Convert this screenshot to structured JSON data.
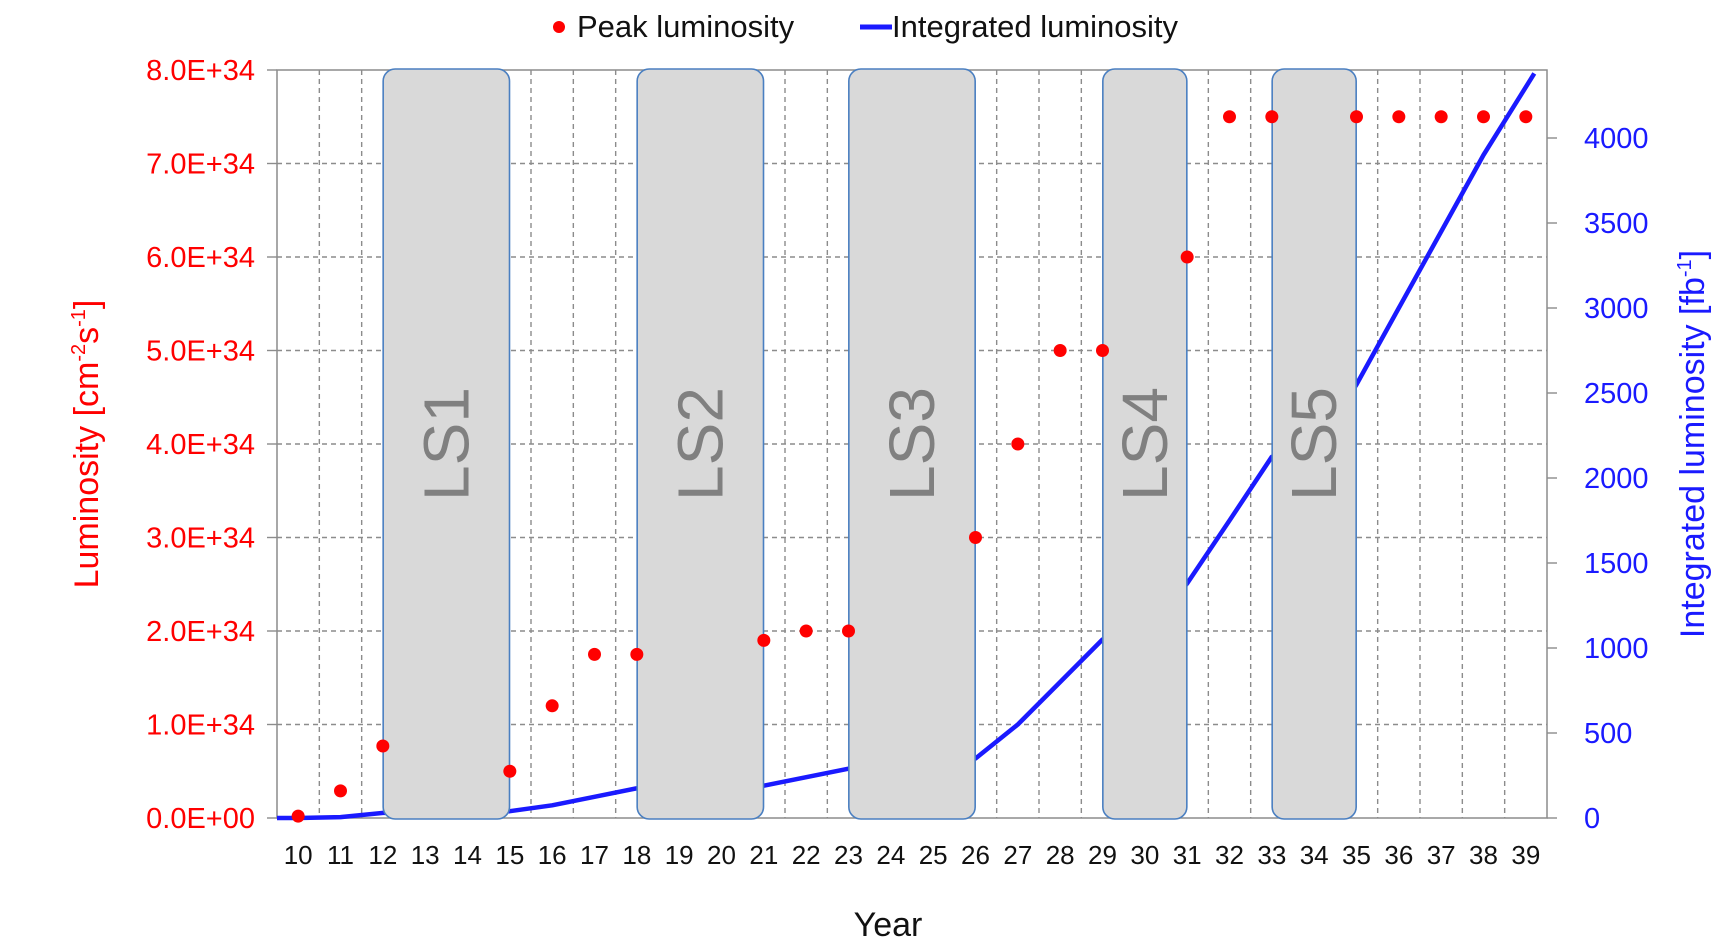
{
  "chart_data": {
    "type": "line",
    "xlabel": "Year",
    "ylabel_left": "Luminosity [cm",
    "ylabel_left_sup1": "-2",
    "ylabel_left_mid": "s",
    "ylabel_left_sup2": "-1",
    "ylabel_left_end": "]",
    "ylabel_right": "Integrated luminosity [fb",
    "ylabel_right_sup": "-1",
    "ylabel_right_end": "]",
    "x_categories": [
      "10",
      "11",
      "12",
      "13",
      "14",
      "15",
      "16",
      "17",
      "18",
      "19",
      "20",
      "21",
      "22",
      "23",
      "24",
      "25",
      "26",
      "27",
      "28",
      "29",
      "30",
      "31",
      "32",
      "33",
      "34",
      "35",
      "36",
      "37",
      "38",
      "39"
    ],
    "y_left_ticks": [
      "0.0E+00",
      "1.0E+34",
      "2.0E+34",
      "3.0E+34",
      "4.0E+34",
      "5.0E+34",
      "6.0E+34",
      "7.0E+34",
      "8.0E+34"
    ],
    "y_left_range": [
      0,
      8e+34
    ],
    "y_right_ticks": [
      "0",
      "500",
      "1000",
      "1500",
      "2000",
      "2500",
      "3000",
      "3500",
      "4000"
    ],
    "y_right_range": [
      0,
      4400
    ],
    "grid": true,
    "legend_position": "top",
    "series": [
      {
        "name": "Peak luminosity",
        "kind": "scatter",
        "axis": "left",
        "color": "#ff0000",
        "points": [
          {
            "x": 10,
            "y": 2e+32
          },
          {
            "x": 11,
            "y": 2.9e+33
          },
          {
            "x": 12,
            "y": 7.7e+33
          },
          {
            "x": 15,
            "y": 5e+33
          },
          {
            "x": 16,
            "y": 1.2e+34
          },
          {
            "x": 17,
            "y": 1.75e+34
          },
          {
            "x": 18,
            "y": 1.75e+34
          },
          {
            "x": 21,
            "y": 1.9e+34
          },
          {
            "x": 22,
            "y": 2e+34
          },
          {
            "x": 23,
            "y": 2e+34
          },
          {
            "x": 26,
            "y": 3e+34
          },
          {
            "x": 27,
            "y": 4e+34
          },
          {
            "x": 28,
            "y": 5e+34
          },
          {
            "x": 29,
            "y": 5e+34
          },
          {
            "x": 31,
            "y": 6e+34
          },
          {
            "x": 32,
            "y": 7.5e+34
          },
          {
            "x": 33,
            "y": 7.5e+34
          },
          {
            "x": 35,
            "y": 7.5e+34
          },
          {
            "x": 36,
            "y": 7.5e+34
          },
          {
            "x": 37,
            "y": 7.5e+34
          },
          {
            "x": 38,
            "y": 7.5e+34
          },
          {
            "x": 39,
            "y": 7.5e+34
          }
        ]
      },
      {
        "name": "Integrated luminosity",
        "kind": "line",
        "axis": "right",
        "color": "#1a1aff",
        "points": [
          {
            "x": 9.5,
            "y": 0
          },
          {
            "x": 10,
            "y": 0
          },
          {
            "x": 11,
            "y": 5
          },
          {
            "x": 12,
            "y": 30
          },
          {
            "x": 13,
            "y": 30
          },
          {
            "x": 14,
            "y": 30
          },
          {
            "x": 15,
            "y": 40
          },
          {
            "x": 16,
            "y": 75
          },
          {
            "x": 17,
            "y": 125
          },
          {
            "x": 18,
            "y": 175
          },
          {
            "x": 19,
            "y": 175
          },
          {
            "x": 20,
            "y": 165
          },
          {
            "x": 21,
            "y": 190
          },
          {
            "x": 22,
            "y": 240
          },
          {
            "x": 23,
            "y": 290
          },
          {
            "x": 24,
            "y": 290
          },
          {
            "x": 25,
            "y": 290
          },
          {
            "x": 26,
            "y": 350
          },
          {
            "x": 27,
            "y": 550
          },
          {
            "x": 28,
            "y": 800
          },
          {
            "x": 29,
            "y": 1050
          },
          {
            "x": 30,
            "y": 1070
          },
          {
            "x": 31,
            "y": 1380
          },
          {
            "x": 32,
            "y": 1750
          },
          {
            "x": 33,
            "y": 2125
          },
          {
            "x": 34,
            "y": 2160
          },
          {
            "x": 35,
            "y": 2550
          },
          {
            "x": 36,
            "y": 3000
          },
          {
            "x": 37,
            "y": 3450
          },
          {
            "x": 38,
            "y": 3900
          },
          {
            "x": 39.2,
            "y": 4380
          }
        ]
      }
    ],
    "shutdowns": [
      {
        "label": "LS1",
        "x_start": 13,
        "x_end": 14
      },
      {
        "label": "LS2",
        "x_start": 19,
        "x_end": 20
      },
      {
        "label": "LS3",
        "x_start": 24,
        "x_end": 25
      },
      {
        "label": "LS4",
        "x_start": 30,
        "x_end": 30
      },
      {
        "label": "LS5",
        "x_start": 34,
        "x_end": 34
      }
    ]
  }
}
